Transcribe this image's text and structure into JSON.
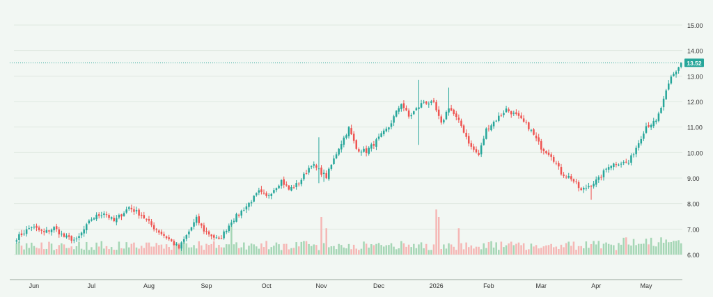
{
  "colors": {
    "background": "#f2f7f3",
    "up": "#26a69a",
    "down": "#ef5350",
    "up_volume": "#a5d6b5",
    "down_volume": "#f5b7b5",
    "last_price_line": "#26a69a",
    "last_price_tag": "#26a69a",
    "grid": "#dfe8e1",
    "text": "#333333"
  },
  "chart_data": {
    "type": "candlestick",
    "grid": true,
    "y_axis": {
      "position": "right",
      "ticks": [
        "6.00",
        "7.00",
        "8.00",
        "9.00",
        "10.00",
        "11.00",
        "12.00",
        "13.00",
        "14.00",
        "15.00"
      ],
      "tick_values": [
        6,
        7,
        8,
        9,
        10,
        11,
        12,
        13,
        14,
        15
      ],
      "range": [
        6.0,
        15.0
      ]
    },
    "x_axis": {
      "labels": [
        "Jun",
        "Jul",
        "Aug",
        "Sep",
        "Oct",
        "Nov",
        "Dec",
        "2026",
        "Feb",
        "Mar",
        "Apr",
        "May"
      ],
      "label_bar_index": [
        7,
        30,
        53,
        76,
        100,
        122,
        145,
        168,
        189,
        210,
        232,
        252
      ]
    },
    "last_price": {
      "value": 13.52,
      "label": "13.52"
    },
    "anchors": [
      [
        0,
        6.65
      ],
      [
        6,
        7.1
      ],
      [
        11,
        6.85
      ],
      [
        15,
        7.05
      ],
      [
        19,
        6.7
      ],
      [
        24,
        6.55
      ],
      [
        30,
        7.4
      ],
      [
        35,
        7.65
      ],
      [
        39,
        7.3
      ],
      [
        45,
        7.85
      ],
      [
        50,
        7.55
      ],
      [
        55,
        7.05
      ],
      [
        61,
        6.6
      ],
      [
        65,
        6.25
      ],
      [
        69,
        6.9
      ],
      [
        72,
        7.4
      ],
      [
        75,
        6.95
      ],
      [
        81,
        6.55
      ],
      [
        86,
        7.3
      ],
      [
        92,
        7.9
      ],
      [
        97,
        8.45
      ],
      [
        100,
        8.25
      ],
      [
        106,
        8.9
      ],
      [
        109,
        8.55
      ],
      [
        113,
        8.8
      ],
      [
        118,
        9.55
      ],
      [
        124,
        9.05
      ],
      [
        129,
        10.2
      ],
      [
        133,
        10.95
      ],
      [
        136,
        10.15
      ],
      [
        140,
        10.05
      ],
      [
        144,
        10.45
      ],
      [
        149,
        11.0
      ],
      [
        154,
        11.95
      ],
      [
        157,
        11.4
      ],
      [
        163,
        12.0
      ],
      [
        167,
        11.9
      ],
      [
        170,
        11.1
      ],
      [
        173,
        11.8
      ],
      [
        178,
        11.05
      ],
      [
        182,
        10.2
      ],
      [
        185,
        9.9
      ],
      [
        188,
        10.9
      ],
      [
        192,
        11.3
      ],
      [
        196,
        11.7
      ],
      [
        200,
        11.45
      ],
      [
        205,
        11.0
      ],
      [
        210,
        10.2
      ],
      [
        214,
        9.9
      ],
      [
        218,
        9.2
      ],
      [
        222,
        9.0
      ],
      [
        226,
        8.5
      ],
      [
        229,
        8.7
      ],
      [
        233,
        8.95
      ],
      [
        237,
        9.5
      ],
      [
        241,
        9.6
      ],
      [
        245,
        9.6
      ],
      [
        249,
        10.4
      ],
      [
        252,
        11.05
      ],
      [
        256,
        11.2
      ],
      [
        259,
        12.05
      ],
      [
        262,
        12.95
      ],
      [
        264,
        13.2
      ],
      [
        266,
        13.52
      ]
    ],
    "spikes": [
      {
        "bar": 161,
        "high": 12.85,
        "low": 10.3
      },
      {
        "bar": 173,
        "high": 12.55
      },
      {
        "bar": 121,
        "high": 10.6,
        "low": 8.8
      },
      {
        "bar": 123,
        "low": 8.85
      },
      {
        "bar": 230,
        "low": 8.15
      }
    ],
    "volume_spikes": [
      {
        "bar": 86,
        "vol": 2.6
      },
      {
        "bar": 122,
        "vol": 3.0
      },
      {
        "bar": 124,
        "vol": 2.1
      },
      {
        "bar": 168,
        "vol": 3.6
      },
      {
        "bar": 169,
        "vol": 3.0
      },
      {
        "bar": 177,
        "vol": 2.1
      },
      {
        "bar": 189,
        "vol": 1.0
      },
      {
        "bar": 262,
        "vol": 1.0
      },
      {
        "bar": 266,
        "vol": 0.9
      }
    ],
    "bar_count": 267
  }
}
